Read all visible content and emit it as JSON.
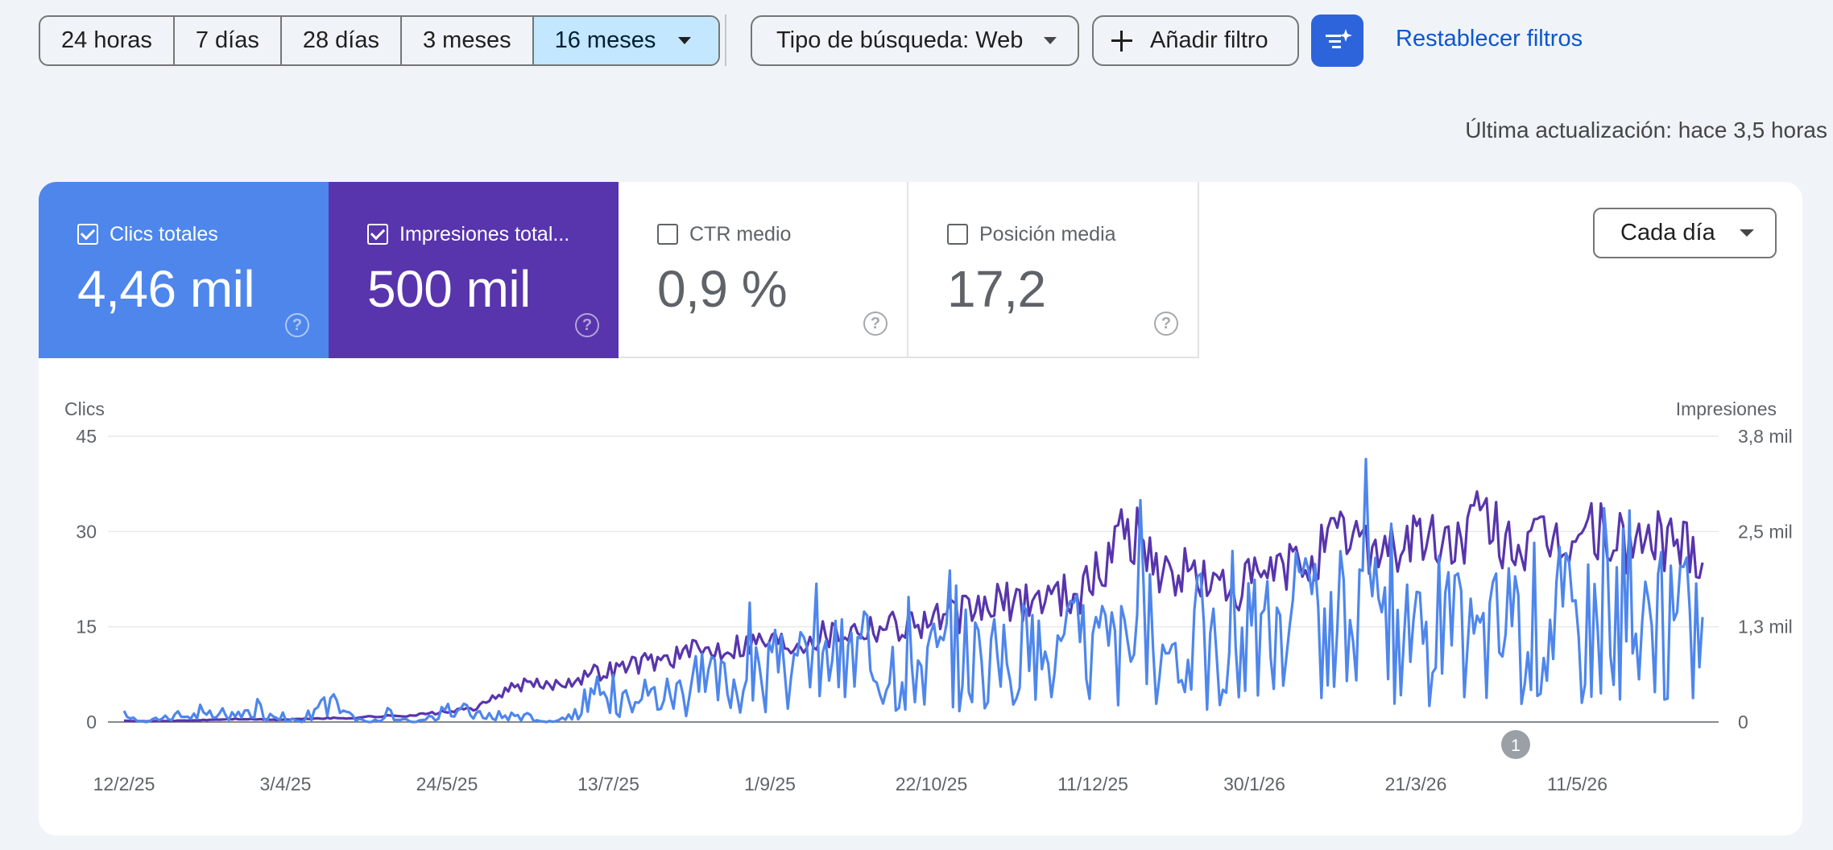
{
  "filters": {
    "ranges": [
      {
        "label": "24 horas",
        "active": false
      },
      {
        "label": "7 días",
        "active": false
      },
      {
        "label": "28 días",
        "active": false
      },
      {
        "label": "3 meses",
        "active": false
      },
      {
        "label": "16 meses",
        "active": true
      }
    ],
    "search_type": "Tipo de búsqueda: Web",
    "add_filter": "Añadir filtro",
    "reset": "Restablecer filtros"
  },
  "last_update": "Última actualización: hace 3,5 horas",
  "metrics": {
    "clicks": {
      "label": "Clics totales",
      "value": "4,46 mil",
      "checked": true,
      "color": "#4e86ec"
    },
    "impressions": {
      "label": "Impresiones total...",
      "value": "500 mil",
      "checked": true,
      "color": "#5835ac"
    },
    "ctr": {
      "label": "CTR medio",
      "value": "0,9 %",
      "checked": false
    },
    "position": {
      "label": "Posición media",
      "value": "17,2",
      "checked": false
    }
  },
  "granularity": "Cada día",
  "annotation_badge": "1",
  "chart_data": {
    "type": "line",
    "left_axis": {
      "label": "Clics",
      "ticks": [
        "0",
        "15",
        "30",
        "45"
      ],
      "range": [
        0,
        45
      ]
    },
    "right_axis": {
      "label": "Impresiones",
      "ticks": [
        "0",
        "1,3 mil",
        "2,5 mil",
        "3,8 mil"
      ],
      "range": [
        0,
        3800
      ]
    },
    "x_ticks": [
      "12/2/25",
      "3/4/25",
      "24/5/25",
      "13/7/25",
      "1/9/25",
      "22/10/25",
      "11/12/25",
      "30/1/26",
      "21/3/26",
      "11/5/26"
    ],
    "series": [
      {
        "key": "clicks",
        "color": "#4e86ec",
        "axis": "left",
        "weekly_values": [
          1,
          0,
          1,
          1,
          1,
          1,
          2,
          1,
          0,
          4,
          1,
          0,
          1,
          0,
          1,
          2,
          1,
          1,
          1,
          0,
          1,
          3,
          5,
          5,
          4,
          5,
          6,
          6,
          7,
          7,
          8,
          9,
          9,
          10,
          9,
          10,
          10,
          10,
          11,
          9,
          10,
          11,
          10,
          12,
          12,
          11,
          13,
          12,
          14,
          11,
          12,
          14,
          12,
          16,
          13,
          12,
          15,
          13,
          14,
          15,
          13,
          12,
          15,
          16,
          17,
          15,
          16,
          15,
          14,
          13,
          15,
          15
        ]
      },
      {
        "key": "impressions",
        "color": "#5835ac",
        "axis": "right",
        "weekly_values": [
          20,
          10,
          15,
          20,
          30,
          40,
          35,
          30,
          40,
          50,
          50,
          70,
          80,
          90,
          120,
          150,
          200,
          400,
          500,
          480,
          550,
          650,
          700,
          780,
          820,
          900,
          950,
          1000,
          1050,
          1100,
          1050,
          1150,
          1200,
          1250,
          1300,
          1300,
          1350,
          1400,
          1450,
          1550,
          1600,
          1650,
          1700,
          1750,
          2000,
          2700,
          2300,
          1900,
          2000,
          1800,
          1750,
          1900,
          2000,
          2100,
          2300,
          2500,
          2400,
          2300,
          2450,
          2350,
          2400,
          2700,
          2450,
          2300,
          2350,
          2400,
          2550,
          2400,
          2350,
          2450,
          2400,
          2300
        ]
      }
    ]
  }
}
